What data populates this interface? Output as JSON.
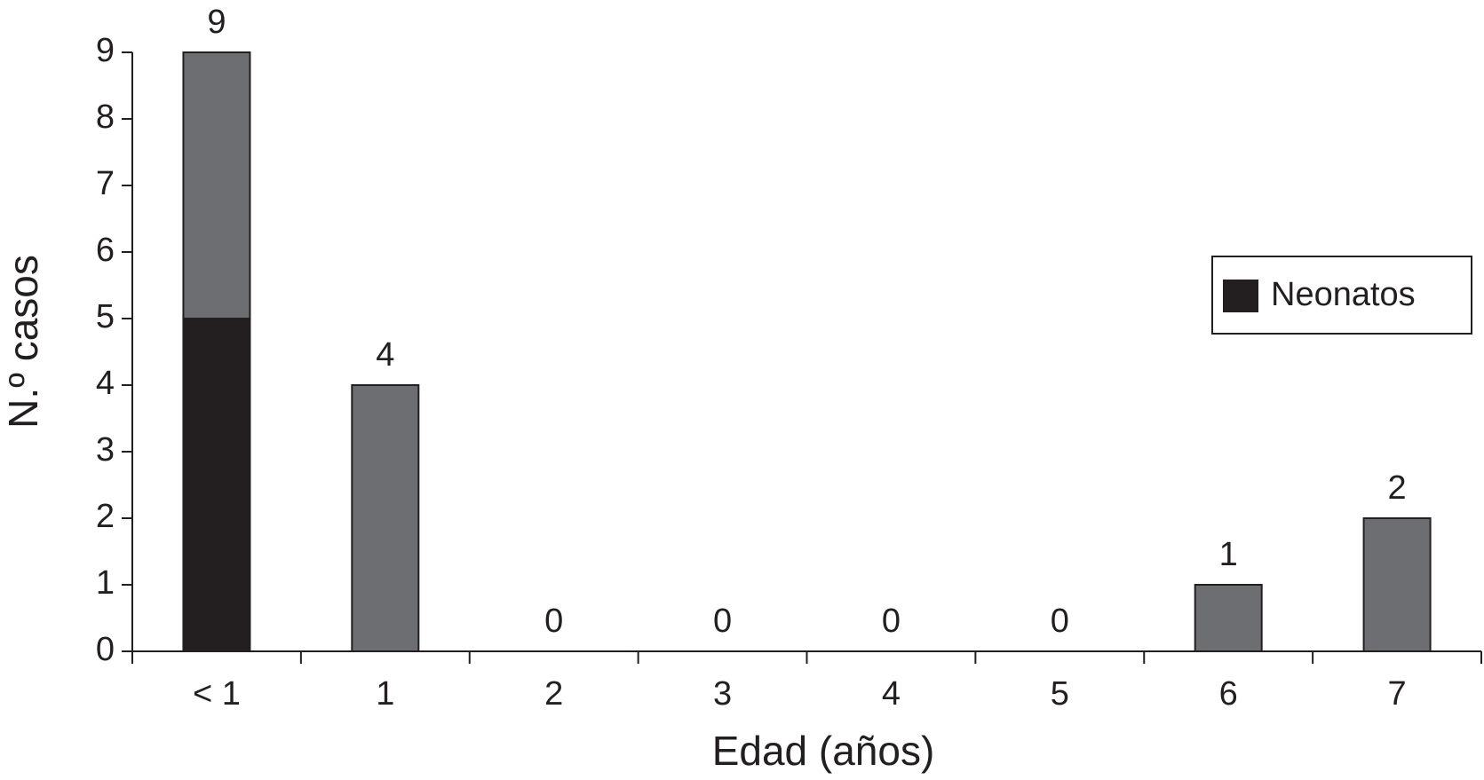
{
  "chart_data": {
    "type": "stacked_bar",
    "x_label": "Edad (años)",
    "y_label": "N.º casos",
    "categories": [
      "< 1",
      "1",
      "2",
      "3",
      "4",
      "5",
      "6",
      "7"
    ],
    "series": [
      {
        "name": "Neonatos",
        "color": "#231f20",
        "values": [
          5,
          0,
          0,
          0,
          0,
          0,
          0,
          0
        ]
      },
      {
        "color": "#6d6e71",
        "values": [
          4,
          4,
          0,
          0,
          0,
          0,
          1,
          2
        ]
      }
    ],
    "totals": [
      9,
      4,
      0,
      0,
      0,
      0,
      1,
      2
    ],
    "ylim": [
      0,
      9
    ],
    "yticks": [
      0,
      1,
      2,
      3,
      4,
      5,
      6,
      7,
      8,
      9
    ],
    "legend": "right"
  }
}
